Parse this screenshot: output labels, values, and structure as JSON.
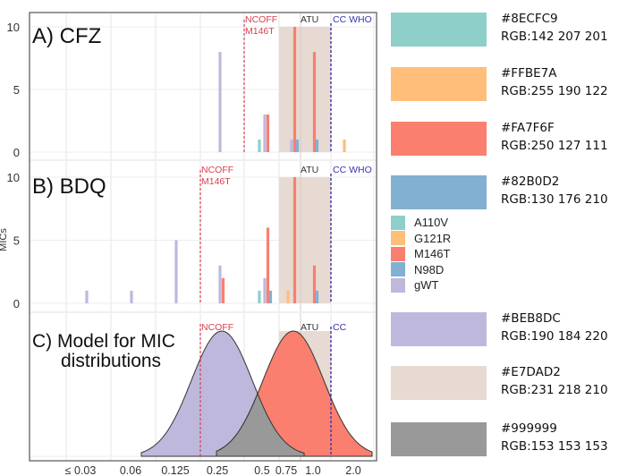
{
  "chart_data": {
    "type": "bar",
    "ylabel": "MICs",
    "x_categories": [
      "≤ 0.03",
      "0.06",
      "0.125",
      "0.25",
      "0.5",
      "0.75",
      "1.0",
      "2.0"
    ],
    "legend": [
      {
        "name": "A110V",
        "color": "#8ECFC9"
      },
      {
        "name": "G121R",
        "color": "#FFBE7A"
      },
      {
        "name": "M146T",
        "color": "#FA7F6F"
      },
      {
        "name": "N98D",
        "color": "#82B0D2"
      },
      {
        "name": "gWT",
        "color": "#BEB8DC"
      }
    ],
    "panels": [
      {
        "title": "A) CFZ",
        "yticks": [
          0,
          5,
          10
        ],
        "ylim": [
          0,
          10
        ],
        "ncoff_label": "NCOFF",
        "ncoff_sub": "M146T",
        "atu_label": "ATU",
        "cc_label": "CC WHO",
        "bars": [
          {
            "series": "gWT",
            "mic": "0.25",
            "value": 8
          },
          {
            "series": "A110V",
            "mic": "0.5",
            "value": 1
          },
          {
            "series": "gWT",
            "mic": "0.5",
            "value": 3
          },
          {
            "series": "M146T",
            "mic": "0.5",
            "value": 3
          },
          {
            "series": "gWT",
            "mic": "0.75",
            "value": 1
          },
          {
            "series": "M146T",
            "mic": "0.75",
            "value": 10
          },
          {
            "series": "N98D",
            "mic": "0.75",
            "value": 1
          },
          {
            "series": "M146T",
            "mic": "1.0",
            "value": 8
          },
          {
            "series": "N98D",
            "mic": "1.0",
            "value": 1
          },
          {
            "series": "G121R",
            "mic": "2.0",
            "value": 1
          }
        ]
      },
      {
        "title": "B) BDQ",
        "yticks": [
          0,
          5,
          10
        ],
        "ylim": [
          0,
          10
        ],
        "ncoff_label": "NCOFF",
        "ncoff_sub": "M146T",
        "atu_label": "ATU",
        "cc_label": "CC WHO",
        "bars": [
          {
            "series": "gWT",
            "mic": "≤ 0.03",
            "value": 1
          },
          {
            "series": "gWT",
            "mic": "0.06",
            "value": 1
          },
          {
            "series": "gWT",
            "mic": "0.125",
            "value": 5
          },
          {
            "series": "gWT",
            "mic": "0.25",
            "value": 3
          },
          {
            "series": "M146T",
            "mic": "0.25",
            "value": 2
          },
          {
            "series": "A110V",
            "mic": "0.5",
            "value": 1
          },
          {
            "series": "gWT",
            "mic": "0.5",
            "value": 2
          },
          {
            "series": "M146T",
            "mic": "0.5",
            "value": 6
          },
          {
            "series": "N98D",
            "mic": "0.5",
            "value": 1
          },
          {
            "series": "G121R",
            "mic": "0.75",
            "value": 1
          },
          {
            "series": "M146T",
            "mic": "0.75",
            "value": 10
          },
          {
            "series": "M146T",
            "mic": "1.0",
            "value": 3
          },
          {
            "series": "N98D",
            "mic": "1.0",
            "value": 1
          }
        ]
      },
      {
        "title_line1": "C) Model for MIC",
        "title_line2": "distributions",
        "ncoff_label": "NCOFF",
        "atu_label": "ATU",
        "cc_label": "CC",
        "curves": [
          {
            "name": "gWT model",
            "color": "#BEB8DC",
            "peak_mic": "0.25"
          },
          {
            "name": "M146T model",
            "color": "#FA7F6F",
            "peak_mic": "0.75"
          },
          {
            "name": "overlap",
            "color": "#999999"
          }
        ]
      }
    ],
    "colors": {
      "atu_band": "#E7DAD2",
      "ncoff_line": "#D6404E",
      "cc_line": "#3A33B0",
      "overlap": "#999999"
    }
  },
  "swatches": [
    {
      "hex": "#8ECFC9",
      "rgb": "RGB:142 207 201"
    },
    {
      "hex": "#FFBE7A",
      "rgb": "RGB:255 190 122"
    },
    {
      "hex": "#FA7F6F",
      "rgb": "RGB:250 127 111"
    },
    {
      "hex": "#82B0D2",
      "rgb": "RGB:130 176 210"
    },
    {
      "hex": "#BEB8DC",
      "rgb": "RGB:190 184 220"
    },
    {
      "hex": "#E7DAD2",
      "rgb": "RGB:231 218 210"
    },
    {
      "hex": "#999999",
      "rgb": "RGB:153 153 153"
    }
  ]
}
